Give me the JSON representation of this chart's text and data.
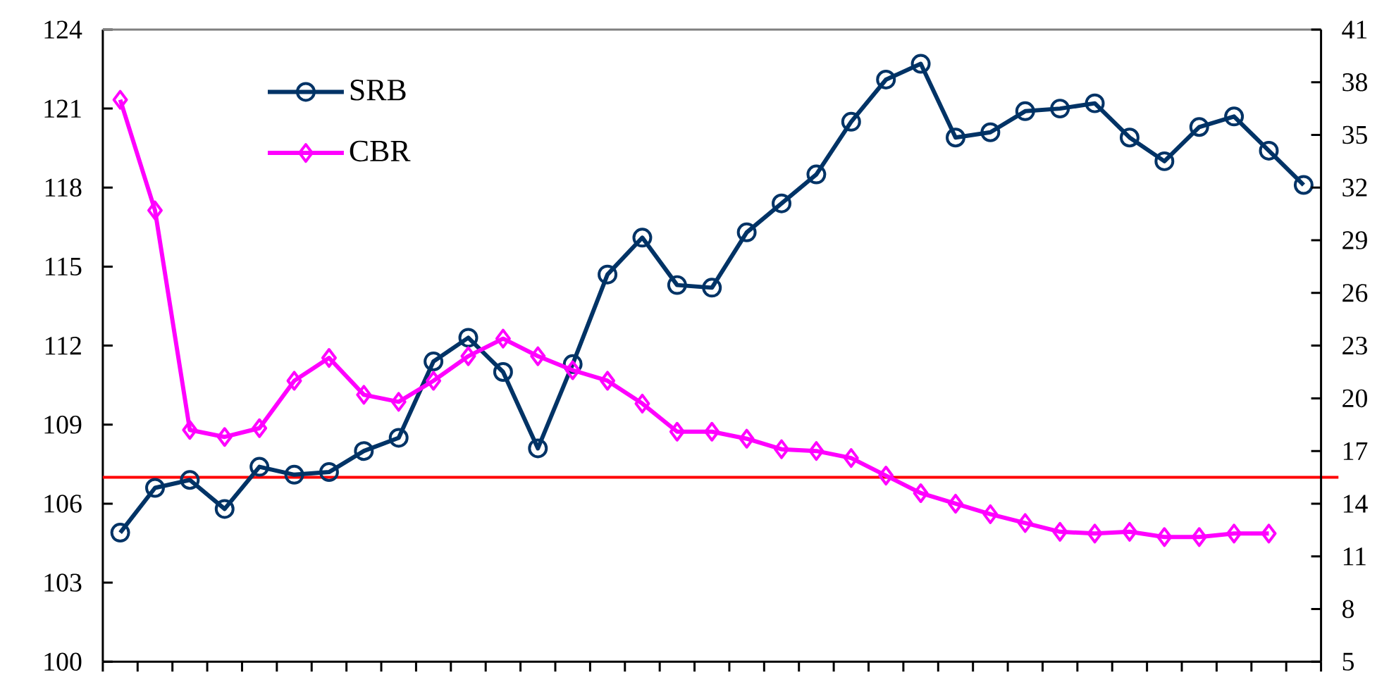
{
  "chart_data": {
    "type": "line",
    "categories": [
      null,
      null,
      null,
      null,
      null,
      null,
      null,
      null,
      null,
      null,
      null,
      null,
      null,
      null,
      null,
      null,
      null,
      null,
      null,
      null,
      null,
      null,
      null,
      null,
      null,
      null,
      null,
      null,
      null,
      null,
      null,
      null,
      null,
      null,
      null
    ],
    "series": [
      {
        "name": "SRB",
        "color": "#003366",
        "marker": "circle",
        "values": [
          104.9,
          106.6,
          106.9,
          105.8,
          107.4,
          107.1,
          107.2,
          108.0,
          108.5,
          111.4,
          112.3,
          111.0,
          108.1,
          111.3,
          114.7,
          116.1,
          114.3,
          114.2,
          116.3,
          117.4,
          118.5,
          120.5,
          122.1,
          122.7,
          119.9,
          120.1,
          120.9,
          121.0,
          121.2,
          119.9,
          119.0,
          120.3,
          120.7,
          119.4,
          118.1
        ]
      },
      {
        "name": "CBR",
        "color": "#ff00ff",
        "marker": "diamond",
        "axis": "y2",
        "values": [
          37.0,
          30.7,
          18.2,
          17.8,
          18.3,
          21.0,
          22.3,
          20.2,
          19.8,
          21.0,
          22.4,
          23.4,
          22.4,
          21.6,
          21.0,
          19.7,
          18.1,
          18.1,
          17.7,
          17.1,
          17.0,
          16.6,
          15.6,
          14.6,
          14.0,
          13.4,
          12.9,
          12.4,
          12.3,
          12.4,
          12.1,
          12.1,
          12.3,
          12.3,
          null
        ]
      }
    ],
    "ylim": [
      100,
      124
    ],
    "yticks": [
      100,
      103,
      106,
      109,
      112,
      115,
      118,
      121,
      124
    ],
    "y2lim": [
      5,
      41
    ],
    "y2ticks": [
      5,
      8,
      11,
      14,
      17,
      20,
      23,
      26,
      29,
      32,
      35,
      38,
      41
    ],
    "ref_lines": [
      {
        "axis": "y",
        "value": 107,
        "color": "#ff0000"
      }
    ],
    "legend": "top left",
    "grid": false
  }
}
